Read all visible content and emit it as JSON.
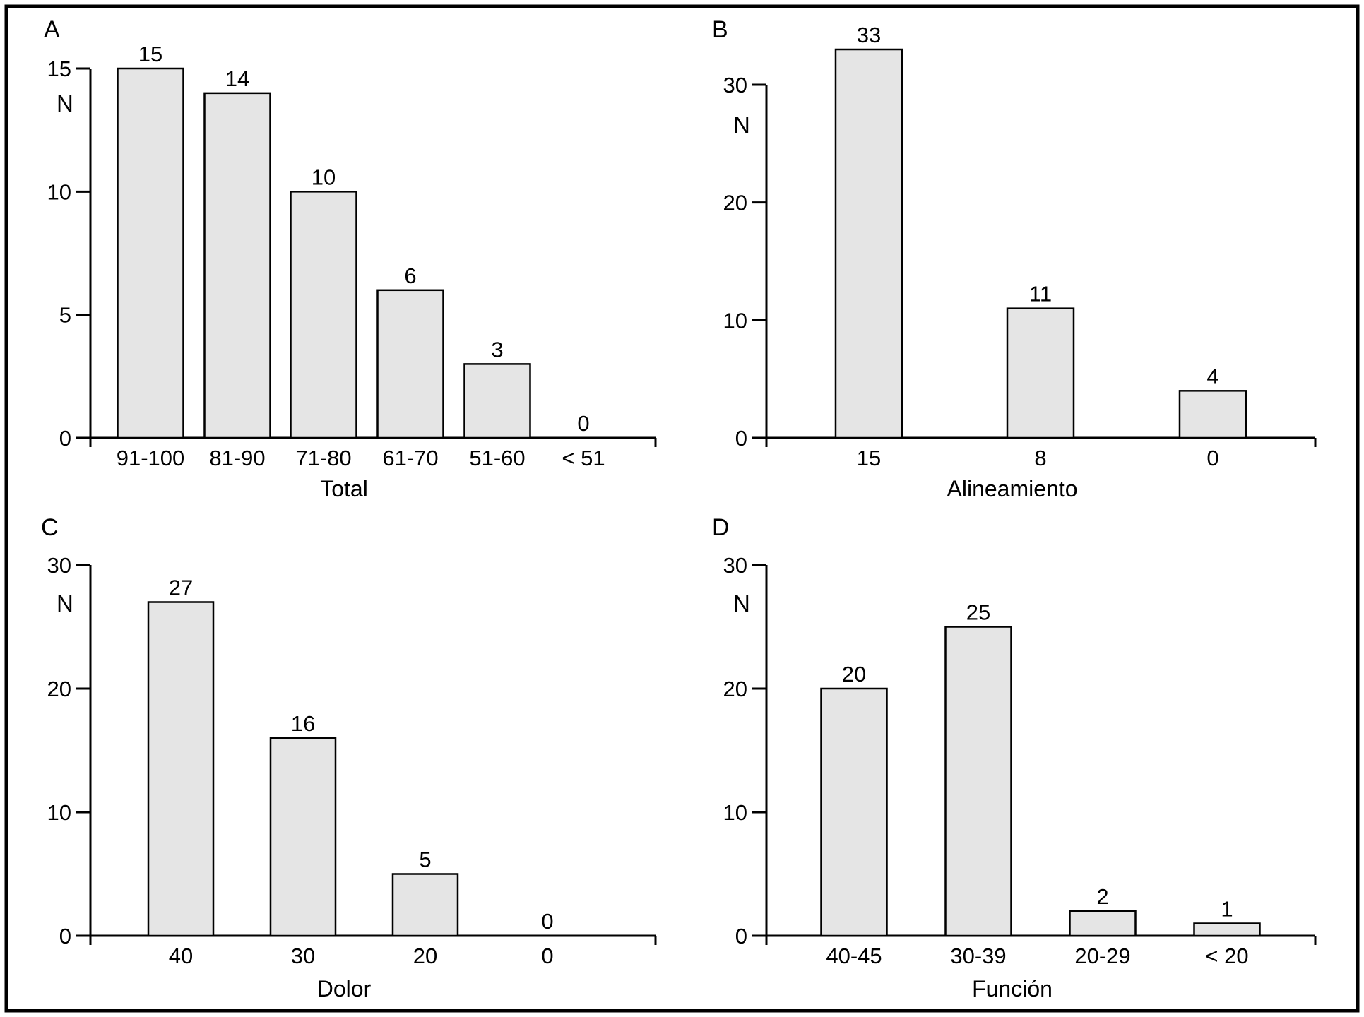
{
  "figure": {
    "background": "#ffffff",
    "frame_color": "#000000",
    "bar_fill": "#e5e5e5",
    "bar_stroke": "#000000",
    "axis_color": "#000000"
  },
  "chart_data": [
    {
      "panel": "A",
      "type": "bar",
      "ylabel": "N",
      "xlabel": "Total",
      "categories": [
        "91-100",
        "81-90",
        "71-80",
        "61-70",
        "51-60",
        "< 51"
      ],
      "values": [
        15,
        14,
        10,
        6,
        3,
        0
      ],
      "yticks": [
        0,
        5,
        10,
        15
      ],
      "ylim": [
        0,
        15
      ],
      "grid": false,
      "value_labels_above_bars": true
    },
    {
      "panel": "B",
      "type": "bar",
      "ylabel": "N",
      "xlabel": "Alineamiento",
      "categories": [
        "15",
        "8",
        "0"
      ],
      "values": [
        33,
        11,
        4
      ],
      "yticks": [
        0,
        10,
        20,
        30
      ],
      "ylim": [
        0,
        30
      ],
      "grid": false,
      "value_labels_above_bars": true
    },
    {
      "panel": "C",
      "type": "bar",
      "ylabel": "N",
      "xlabel": "Dolor",
      "categories": [
        "40",
        "30",
        "20",
        "0"
      ],
      "values": [
        27,
        16,
        5,
        0
      ],
      "yticks": [
        0,
        10,
        20,
        30
      ],
      "ylim": [
        0,
        30
      ],
      "grid": false,
      "value_labels_above_bars": true
    },
    {
      "panel": "D",
      "type": "bar",
      "ylabel": "N",
      "xlabel": "Función",
      "categories": [
        "40-45",
        "30-39",
        "20-29",
        "< 20"
      ],
      "values": [
        20,
        25,
        2,
        1
      ],
      "yticks": [
        0,
        10,
        20,
        30
      ],
      "ylim": [
        0,
        30
      ],
      "grid": false,
      "value_labels_above_bars": true
    }
  ]
}
